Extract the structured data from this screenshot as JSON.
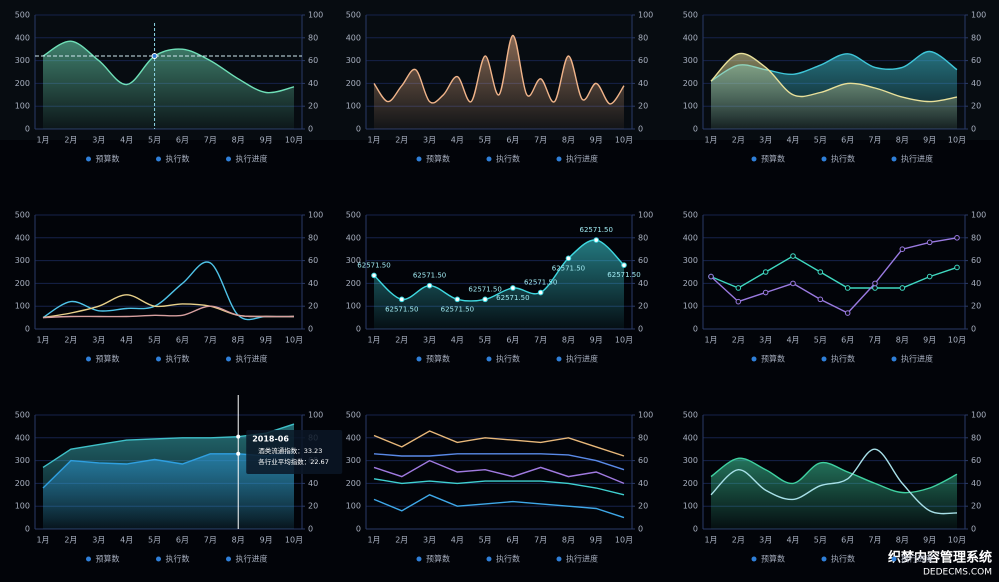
{
  "watermark": [
    "织梦内容管理系统",
    "DEDECMS.COM"
  ],
  "chart_data": [
    {
      "type": "line",
      "smooth": true,
      "categories": [
        "1月",
        "2月",
        "3月",
        "4月",
        "5月",
        "6月",
        "7月",
        "8月",
        "9月",
        "10月"
      ],
      "series": [
        {
          "color": "#6fe0b8",
          "area": true,
          "values": [
            320,
            385,
            300,
            195,
            320,
            350,
            300,
            220,
            160,
            185
          ]
        }
      ],
      "crosshair": 4,
      "ylim": [
        0,
        500
      ],
      "yticks": [
        0,
        100,
        200,
        300,
        400,
        500
      ],
      "y2lim": [
        0,
        100
      ],
      "y2ticks": [
        0,
        20,
        40,
        60,
        80,
        100
      ],
      "legend": [
        "预算数",
        "执行数",
        "执行进度"
      ],
      "legend_color": "#2f7fd8"
    },
    {
      "type": "line",
      "smooth": true,
      "categories": [
        "1月",
        null,
        "2月",
        null,
        "3月",
        null,
        "4月",
        null,
        "5月",
        null,
        "6月",
        null,
        "7月",
        null,
        "8月",
        null,
        "9月",
        null,
        "10月"
      ],
      "series": [
        {
          "color": "#f0b48a",
          "area": true,
          "values": [
            200,
            120,
            190,
            260,
            120,
            150,
            230,
            120,
            320,
            150,
            410,
            150,
            220,
            120,
            320,
            130,
            200,
            110,
            190
          ]
        }
      ],
      "ylim": [
        0,
        500
      ],
      "yticks": [
        0,
        100,
        200,
        300,
        400,
        500
      ],
      "y2lim": [
        0,
        100
      ],
      "y2ticks": [
        0,
        20,
        40,
        60,
        80,
        100
      ],
      "legend": [
        "预算数",
        "执行数",
        "执行进度"
      ],
      "legend_color": "#2f7fd8"
    },
    {
      "type": "line",
      "smooth": true,
      "categories": [
        "1月",
        "2月",
        "3月",
        "4月",
        "5月",
        "6月",
        "7月",
        "8月",
        "9月",
        "10月"
      ],
      "series": [
        {
          "color": "#3fc6d8",
          "area": true,
          "values": [
            210,
            280,
            260,
            240,
            280,
            330,
            270,
            270,
            340,
            260
          ]
        },
        {
          "color": "#e8e09a",
          "area": true,
          "values": [
            210,
            330,
            270,
            150,
            160,
            200,
            180,
            140,
            120,
            140
          ]
        }
      ],
      "ylim": [
        0,
        500
      ],
      "yticks": [
        0,
        100,
        200,
        300,
        400,
        500
      ],
      "y2lim": [
        0,
        100
      ],
      "y2ticks": [
        0,
        20,
        40,
        60,
        80,
        100
      ],
      "legend": [
        "预算数",
        "执行数",
        "执行进度"
      ],
      "legend_color": "#2f7fd8"
    },
    {
      "type": "line",
      "smooth": true,
      "categories": [
        "1月",
        "2月",
        "3月",
        "4月",
        "5月",
        "6月",
        "7月",
        "8月",
        "9月",
        "10月"
      ],
      "series": [
        {
          "color": "#4fc3e8",
          "values": [
            50,
            120,
            80,
            90,
            100,
            200,
            290,
            60,
            55,
            55
          ]
        },
        {
          "color": "#e8d08a",
          "values": [
            50,
            70,
            100,
            150,
            100,
            110,
            100,
            60,
            55,
            55
          ]
        },
        {
          "color": "#d8a0a0",
          "values": [
            50,
            55,
            55,
            55,
            60,
            60,
            100,
            60,
            55,
            55
          ]
        }
      ],
      "ylim": [
        0,
        500
      ],
      "yticks": [
        0,
        100,
        200,
        300,
        400,
        500
      ],
      "y2lim": [
        0,
        100
      ],
      "y2ticks": [
        0,
        20,
        40,
        60,
        80,
        100
      ],
      "legend": [
        "预算数",
        "执行数",
        "执行进度"
      ],
      "legend_color": "#2f7fd8"
    },
    {
      "type": "line",
      "smooth": true,
      "markers": true,
      "categories": [
        "1月",
        "2月",
        "3月",
        "4月",
        "5月",
        "6月",
        "7月",
        "8月",
        "9月",
        "10月"
      ],
      "series": [
        {
          "color": "#3fd8e0",
          "area": true,
          "values": [
            235,
            130,
            190,
            130,
            130,
            180,
            160,
            310,
            390,
            280
          ]
        }
      ],
      "point_labels": [
        "62571.50",
        "62571.50",
        "62571.50",
        "62571.50",
        "62571.50",
        "62571.50",
        "62571.50",
        "62571.50",
        "62571.50",
        "62571.50"
      ],
      "ylim": [
        0,
        500
      ],
      "yticks": [
        0,
        100,
        200,
        300,
        400,
        500
      ],
      "y2lim": [
        0,
        100
      ],
      "y2ticks": [
        0,
        20,
        40,
        60,
        80,
        100
      ],
      "legend": [
        "预算数",
        "执行数",
        "执行进度"
      ],
      "legend_color": "#2f7fd8"
    },
    {
      "type": "line",
      "smooth": false,
      "markers": true,
      "categories": [
        "1月",
        "2月",
        "3月",
        "4月",
        "5月",
        "6月",
        "7月",
        "8月",
        "9月",
        "10月"
      ],
      "series": [
        {
          "color": "#3fd8c0",
          "values": [
            230,
            180,
            250,
            320,
            250,
            180,
            180,
            180,
            230,
            270
          ]
        },
        {
          "color": "#9a7ae0",
          "values": [
            230,
            120,
            160,
            200,
            130,
            70,
            200,
            350,
            380,
            400
          ]
        }
      ],
      "ylim": [
        0,
        500
      ],
      "yticks": [
        0,
        100,
        200,
        300,
        400,
        500
      ],
      "y2lim": [
        0,
        100
      ],
      "y2ticks": [
        0,
        20,
        40,
        60,
        80,
        100
      ],
      "legend": [
        "预算数",
        "执行数",
        "执行进度"
      ],
      "legend_color": "#2f7fd8"
    },
    {
      "type": "line",
      "smooth": false,
      "categories": [
        "1月",
        "2月",
        "3月",
        "4月",
        "5月",
        "6月",
        "7月",
        "8月",
        "9月",
        "10月"
      ],
      "series": [
        {
          "color": "#3fc0c8",
          "area": true,
          "values": [
            270,
            350,
            370,
            390,
            395,
            400,
            400,
            405,
            420,
            460
          ]
        },
        {
          "color": "#2f9fe0",
          "area": true,
          "values": [
            180,
            300,
            290,
            285,
            305,
            285,
            330,
            330,
            320,
            340
          ]
        }
      ],
      "crosshair": 7,
      "tooltip": {
        "title": "2018-06",
        "lines": [
          "酒类流通指数：33.23",
          "各行业平均指数：22.67"
        ]
      },
      "ylim": [
        0,
        500
      ],
      "yticks": [
        0,
        100,
        200,
        300,
        400,
        500
      ],
      "y2lim": [
        0,
        100
      ],
      "y2ticks": [
        0,
        20,
        40,
        60,
        80,
        100
      ],
      "legend": [
        "预算数",
        "执行数",
        "执行进度"
      ],
      "legend_color": "#2f7fd8"
    },
    {
      "type": "line",
      "smooth": false,
      "categories": [
        "1月",
        "2月",
        "3月",
        "4月",
        "5月",
        "6月",
        "7月",
        "8月",
        "9月",
        "10月"
      ],
      "series": [
        {
          "color": "#e8b87a",
          "values": [
            410,
            360,
            430,
            380,
            400,
            390,
            380,
            400,
            360,
            320
          ]
        },
        {
          "color": "#5a8ae8",
          "values": [
            330,
            320,
            320,
            330,
            330,
            330,
            330,
            325,
            300,
            260
          ]
        },
        {
          "color": "#a07ae0",
          "values": [
            270,
            230,
            300,
            250,
            260,
            230,
            270,
            230,
            250,
            200
          ]
        },
        {
          "color": "#3fd0d0",
          "values": [
            220,
            200,
            210,
            200,
            210,
            210,
            210,
            200,
            180,
            150
          ]
        },
        {
          "color": "#3fa8e8",
          "values": [
            130,
            80,
            150,
            100,
            110,
            120,
            110,
            100,
            90,
            50
          ]
        }
      ],
      "ylim": [
        0,
        500
      ],
      "yticks": [
        0,
        100,
        200,
        300,
        400,
        500
      ],
      "y2lim": [
        0,
        100
      ],
      "y2ticks": [
        0,
        20,
        40,
        60,
        80,
        100
      ],
      "legend": [
        "预算数",
        "执行数",
        "执行进度"
      ],
      "legend_color": "#2f7fd8"
    },
    {
      "type": "line",
      "smooth": true,
      "categories": [
        "1月",
        "2月",
        "3月",
        "4月",
        "5月",
        "6月",
        "7月",
        "8月",
        "9月",
        "10月"
      ],
      "series": [
        {
          "color": "#3fd0a0",
          "area": true,
          "values": [
            230,
            310,
            260,
            200,
            290,
            250,
            200,
            160,
            180,
            240
          ]
        },
        {
          "color": "#a8e0e8",
          "values": [
            150,
            260,
            170,
            130,
            190,
            220,
            350,
            200,
            80,
            70
          ]
        }
      ],
      "ylim": [
        0,
        500
      ],
      "yticks": [
        0,
        100,
        200,
        300,
        400,
        500
      ],
      "y2lim": [
        0,
        100
      ],
      "y2ticks": [
        0,
        20,
        40,
        60,
        80,
        100
      ],
      "legend": [
        "预算数",
        "执行数",
        "执行进度"
      ],
      "legend_color": "#2f7fd8"
    }
  ]
}
